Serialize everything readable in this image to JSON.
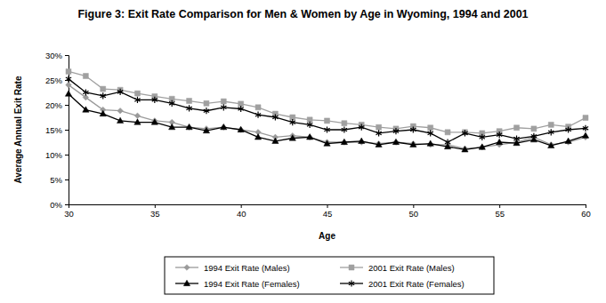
{
  "chart_data": {
    "type": "line",
    "title": "Figure 3: Exit Rate Comparison for Men & Women by Age in Wyoming, 1994 and 2001",
    "x_label": "Age",
    "y_label": "Average Annual Exit Rate",
    "x": [
      30,
      31,
      32,
      33,
      34,
      35,
      36,
      37,
      38,
      39,
      40,
      41,
      42,
      43,
      44,
      45,
      46,
      47,
      48,
      49,
      50,
      51,
      52,
      53,
      54,
      55,
      56,
      57,
      58,
      59,
      60
    ],
    "xlim": [
      30,
      60
    ],
    "xticks": [
      30,
      35,
      40,
      45,
      50,
      55,
      60
    ],
    "ylim": [
      0,
      30
    ],
    "yticks": [
      {
        "value": 0,
        "label": "0%"
      },
      {
        "value": 5,
        "label": "5%"
      },
      {
        "value": 10,
        "label": "10%"
      },
      {
        "value": 15,
        "label": "15%"
      },
      {
        "value": 20,
        "label": "20%"
      },
      {
        "value": 25,
        "label": "25%"
      },
      {
        "value": 30,
        "label": "30%"
      }
    ],
    "grid": false,
    "legend": "bottom",
    "series": [
      {
        "name": "1994 Exit Rate (Males)",
        "color": "#9a9a9a",
        "marker": "diamond",
        "values": [
          24,
          21.5,
          19,
          18.8,
          17.8,
          16.8,
          16.5,
          15.5,
          15.2,
          15.5,
          15,
          14.5,
          13.5,
          13.8,
          13.5,
          12.5,
          12.5,
          12.5,
          12.2,
          12.5,
          12.2,
          12,
          12,
          11.2,
          11.5,
          12,
          12.5,
          13.5,
          12,
          12.5,
          13.5
        ]
      },
      {
        "name": "2001 Exit Rate (Males)",
        "color": "#a0a0a0",
        "marker": "square",
        "values": [
          26.7,
          25.8,
          23.2,
          23,
          22.3,
          21.7,
          21.2,
          20.8,
          20.3,
          20.7,
          20.2,
          19.5,
          18.2,
          17.5,
          17,
          16.8,
          16.3,
          16,
          15.5,
          15.2,
          15.7,
          15.4,
          14.5,
          14.5,
          14.3,
          14.7,
          15.4,
          15.2,
          16,
          15.6,
          17.4
        ]
      },
      {
        "name": "1994 Exit Rate (Females)",
        "color": "#000000",
        "marker": "triangle",
        "values": [
          22.2,
          19,
          18.2,
          16.8,
          16.5,
          16.5,
          15.5,
          15.5,
          14.8,
          15.5,
          15,
          13.5,
          12.7,
          13.3,
          13.5,
          12.2,
          12.5,
          12.7,
          12,
          12.5,
          12,
          12.2,
          11.6,
          11,
          11.5,
          12.5,
          12.3,
          13,
          11.8,
          12.7,
          13.8
        ]
      },
      {
        "name": "2001 Exit Rate (Females)",
        "color": "#000000",
        "marker": "asterisk",
        "values": [
          25.2,
          22.5,
          21.8,
          22.6,
          21,
          21,
          20.3,
          19.3,
          18.8,
          19.5,
          19.2,
          18,
          17.5,
          16.5,
          16,
          15,
          15,
          15.5,
          14.3,
          14.7,
          15,
          14.3,
          12.5,
          14.3,
          13.5,
          14,
          13.2,
          13.7,
          14.5,
          15,
          15.3
        ]
      }
    ]
  }
}
